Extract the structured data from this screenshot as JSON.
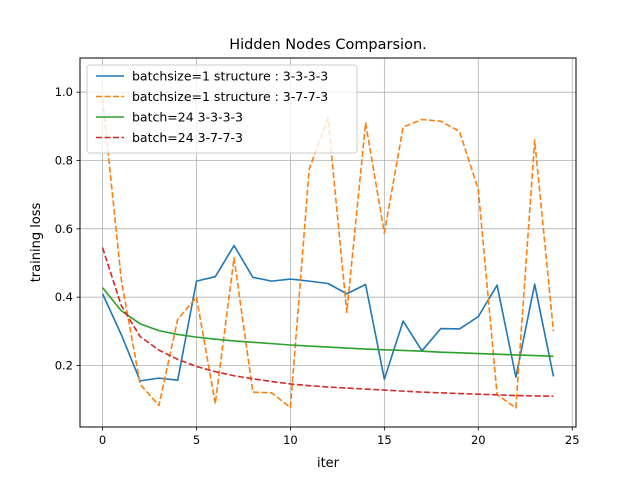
{
  "chart_data": {
    "type": "line",
    "title": "Hidden Nodes Comparsion.",
    "xlabel": "iter",
    "ylabel": "training loss",
    "xlim": [
      -1.2,
      25.2
    ],
    "ylim": [
      0.02,
      1.1
    ],
    "xticks": [
      0,
      5,
      10,
      15,
      20,
      25
    ],
    "yticks": [
      0.2,
      0.4,
      0.6,
      0.8,
      1.0
    ],
    "xtick_labels": [
      "0",
      "5",
      "10",
      "15",
      "20",
      "25"
    ],
    "ytick_labels": [
      "0.2",
      "0.4",
      "0.6",
      "0.8",
      "1.0"
    ],
    "grid": true,
    "legend_position": "upper-left",
    "x": [
      0,
      1,
      2,
      3,
      4,
      5,
      6,
      7,
      8,
      9,
      10,
      11,
      12,
      13,
      14,
      15,
      16,
      17,
      18,
      19,
      20,
      21,
      22,
      23,
      24
    ],
    "series": [
      {
        "name": "batchsize=1 structure : 3-3-3-3",
        "color": "#1f77b4",
        "dash": "solid",
        "values": [
          0.41,
          0.29,
          0.155,
          0.163,
          0.157,
          0.447,
          0.46,
          0.551,
          0.458,
          0.447,
          0.453,
          0.447,
          0.44,
          0.41,
          0.437,
          0.16,
          0.33,
          0.243,
          0.308,
          0.307,
          0.343,
          0.435,
          0.166,
          0.438,
          0.168
        ]
      },
      {
        "name": "batchsize=1 structure : 3-7-7-3",
        "color": "#ff7f0e",
        "dash": "dashed",
        "values": [
          0.98,
          0.45,
          0.145,
          0.083,
          0.335,
          0.4,
          0.088,
          0.515,
          0.122,
          0.12,
          0.077,
          0.775,
          0.925,
          0.355,
          0.91,
          0.588,
          0.898,
          0.92,
          0.915,
          0.885,
          0.715,
          0.115,
          0.076,
          0.86,
          0.3
        ]
      },
      {
        "name": "batch=24 3-3-3-3",
        "color": "#2ca02c",
        "dash": "solid",
        "values": [
          0.428,
          0.36,
          0.322,
          0.302,
          0.291,
          0.283,
          0.277,
          0.272,
          0.268,
          0.264,
          0.26,
          0.257,
          0.254,
          0.251,
          0.248,
          0.246,
          0.244,
          0.242,
          0.239,
          0.237,
          0.235,
          0.233,
          0.231,
          0.229,
          0.227
        ]
      },
      {
        "name": "batch=24 3-7-7-3",
        "color": "#d62728",
        "dash": "dashed",
        "values": [
          0.545,
          0.375,
          0.285,
          0.245,
          0.218,
          0.197,
          0.182,
          0.17,
          0.161,
          0.153,
          0.146,
          0.141,
          0.137,
          0.134,
          0.131,
          0.128,
          0.125,
          0.122,
          0.12,
          0.118,
          0.116,
          0.114,
          0.112,
          0.111,
          0.11
        ]
      }
    ]
  }
}
